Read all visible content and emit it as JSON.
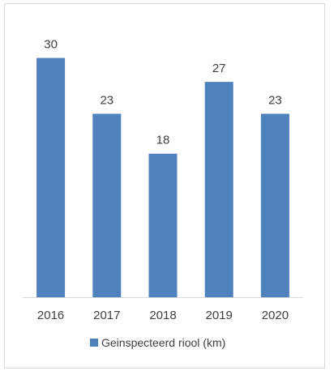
{
  "chart_data": {
    "type": "bar",
    "categories": [
      "2016",
      "2017",
      "2018",
      "2019",
      "2020"
    ],
    "series": [
      {
        "name": "Geinspecteerd riool (km)",
        "values": [
          30,
          23,
          18,
          27,
          23
        ],
        "color": "#4f81bd"
      }
    ],
    "data_labels": [
      "30",
      "23",
      "18",
      "27",
      "23"
    ],
    "title": "",
    "xlabel": "",
    "ylabel": "",
    "ylim": [
      0,
      33
    ],
    "grid": false,
    "legend_position": "bottom"
  },
  "colors": {
    "bar": "#4f81bd",
    "axis": "#d9d9d9",
    "text": "#404040",
    "frame": "#d9d9d9"
  }
}
